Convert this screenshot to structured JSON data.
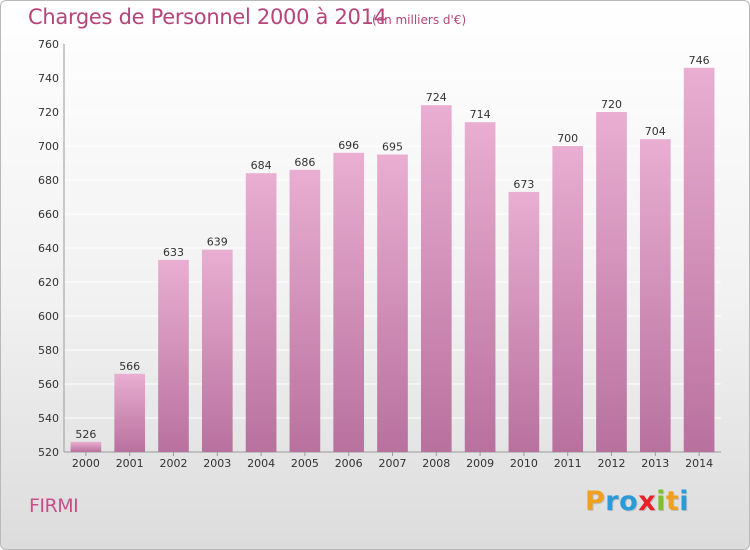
{
  "header": {
    "title": "Charges de Personnel 2000 à 2014",
    "subtitle": "(en milliers d'€)"
  },
  "footer": {
    "commune": "FIRMI",
    "logo_letters": [
      "P",
      "r",
      "o",
      "x",
      "i",
      "t",
      "i"
    ],
    "logo_colors": [
      "#f0a020",
      "#2a9ad8",
      "#2a9ad8",
      "#e8202a",
      "#7fbf2a",
      "#f0a020",
      "#2a9ad8"
    ]
  },
  "colors": {
    "bar_top": "#e9aed1",
    "bar_bottom": "#b8719e",
    "grid": "#ffffff",
    "text_accent": "#b5457a"
  },
  "chart_data": {
    "type": "bar",
    "categories": [
      "2000",
      "2001",
      "2002",
      "2003",
      "2004",
      "2005",
      "2006",
      "2007",
      "2008",
      "2009",
      "2010",
      "2011",
      "2012",
      "2013",
      "2014"
    ],
    "values": [
      526,
      566,
      633,
      639,
      684,
      686,
      696,
      695,
      724,
      714,
      673,
      700,
      720,
      704,
      746
    ],
    "ylim": [
      520,
      760
    ],
    "yticks": [
      520,
      540,
      560,
      580,
      600,
      620,
      640,
      660,
      680,
      700,
      720,
      740,
      760
    ],
    "grid": true,
    "legend": "none"
  }
}
